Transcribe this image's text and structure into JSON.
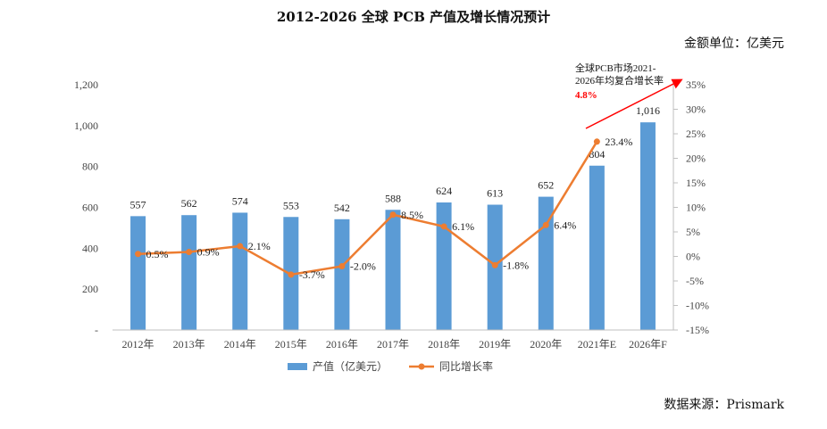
{
  "title": "2012-2026 全球 PCB 产值及增长情况预计",
  "unit_label": "金额单位：亿美元",
  "source_label": "数据来源：Prismark",
  "annotation": {
    "line1": "全球PCB市场2021-",
    "line2": "2026年均复合增长率",
    "value": "4.8%",
    "value_color": "#ff0000",
    "arrow_color": "#ff0000"
  },
  "chart_data": {
    "type": "bar",
    "title": "2012-2026 全球 PCB 产值及增长情况预计",
    "categories": [
      "2012年",
      "2013年",
      "2014年",
      "2015年",
      "2016年",
      "2017年",
      "2018年",
      "2019年",
      "2020年",
      "2021年E",
      "2026年F"
    ],
    "series": [
      {
        "name": "产值（亿美元）",
        "type": "bar",
        "axis": "left",
        "color": "#5b9bd5",
        "values": [
          557,
          562,
          574,
          553,
          542,
          588,
          624,
          613,
          652,
          804,
          1016
        ],
        "labels": [
          "557",
          "562",
          "574",
          "553",
          "542",
          "588",
          "624",
          "613",
          "652",
          "804",
          "1,016"
        ]
      },
      {
        "name": "同比增长率",
        "type": "line",
        "axis": "right",
        "color": "#ed7d31",
        "values": [
          0.5,
          0.9,
          2.1,
          -3.7,
          -2.0,
          8.5,
          6.1,
          -1.8,
          6.4,
          23.4,
          null
        ],
        "labels": [
          "0.5%",
          "0.9%",
          "2.1%",
          "-3.7%",
          "-2.0%",
          "8.5%",
          "6.1%",
          "-1.8%",
          "6.4%",
          "23.4%",
          ""
        ]
      }
    ],
    "y_left": {
      "ylim": [
        0,
        1200
      ],
      "ticks": [
        0,
        200,
        400,
        600,
        800,
        1000,
        1200
      ],
      "tick_labels": [
        "-",
        "200",
        "400",
        "600",
        "800",
        "1,000",
        "1,200"
      ]
    },
    "y_right": {
      "ylim": [
        -15,
        35
      ],
      "ticks": [
        -15,
        -10,
        -5,
        0,
        5,
        10,
        15,
        20,
        25,
        30,
        35
      ],
      "tick_labels": [
        "-15%",
        "-10%",
        "-5%",
        "0%",
        "5%",
        "10%",
        "15%",
        "20%",
        "25%",
        "30%",
        "35%"
      ]
    },
    "grid": false,
    "legend": "bottom"
  }
}
